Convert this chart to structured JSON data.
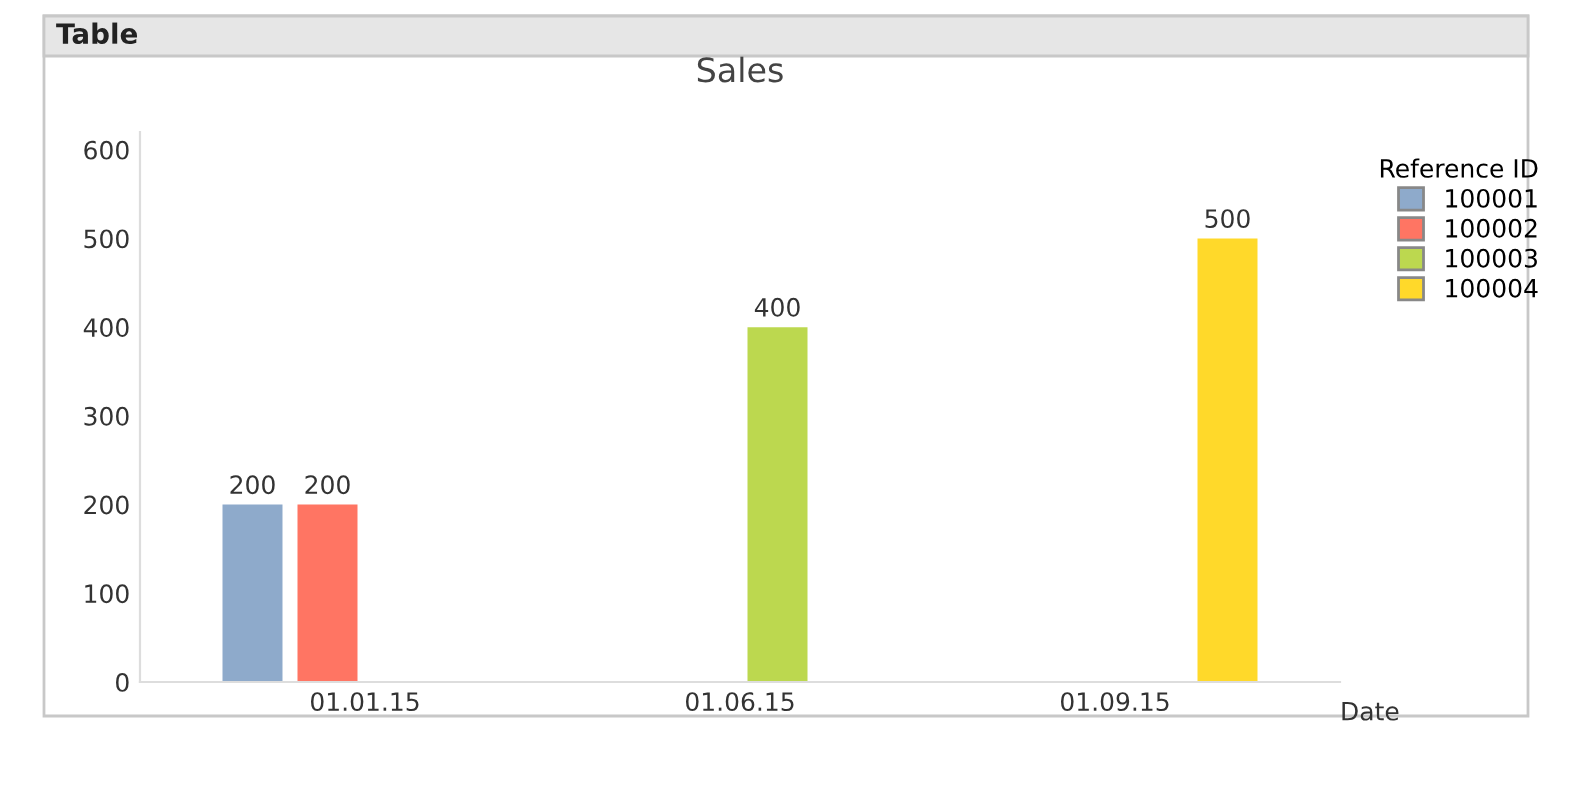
{
  "chart_data": {
    "type": "bar",
    "title": "Sales",
    "xlabel": "Date",
    "legend_title": "Reference ID",
    "annotations": [
      "Table"
    ],
    "categories": [
      "01.01.15",
      "01.06.15",
      "01.09.15"
    ],
    "series": [
      {
        "name": "100001",
        "color": "#8eaacb",
        "values": [
          200,
          null,
          null
        ]
      },
      {
        "name": "100002",
        "color": "#ff7563",
        "values": [
          200,
          null,
          null
        ]
      },
      {
        "name": "100003",
        "color": "#bcd84f",
        "values": [
          null,
          400,
          null
        ]
      },
      {
        "name": "100004",
        "color": "#ffd92a",
        "values": [
          null,
          null,
          500
        ]
      }
    ],
    "ylim": [
      0,
      620
    ],
    "yticks": [
      0,
      100,
      200,
      300,
      400,
      500,
      600
    ],
    "data_labels": true,
    "grid": false,
    "legend": "top right"
  }
}
